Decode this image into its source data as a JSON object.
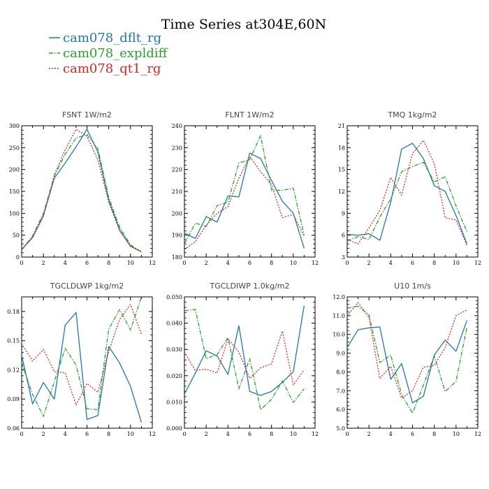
{
  "page": {
    "title": "Time Series at304E,60N"
  },
  "legend": [
    {
      "name": "cam078_dflt_rg",
      "color": "#1f77b4",
      "dash": "solid"
    },
    {
      "name": "cam078_expldiff",
      "color": "#2ca02c",
      "dash": "dashdot"
    },
    {
      "name": "cam078_qt1_rg",
      "color": "#d62728",
      "dash": "dot"
    }
  ],
  "chart_data": [
    {
      "type": "line",
      "title": "FSNT   1W/m2",
      "x": [
        0,
        1,
        2,
        3,
        4,
        5,
        6,
        7,
        8,
        9,
        10,
        11
      ],
      "xlim": [
        0,
        12
      ],
      "ylim": [
        0,
        300
      ],
      "xticks": [
        0,
        2,
        4,
        6,
        8,
        10,
        12
      ],
      "yticks": [
        "0",
        "50",
        "100",
        "150",
        "200",
        "250",
        "300"
      ],
      "ytick_values": [
        0,
        50,
        100,
        150,
        200,
        250,
        300
      ],
      "series": [
        {
          "name": "cam078_dflt_rg",
          "values": [
            17,
            45,
            95,
            180,
            215,
            252,
            292,
            240,
            130,
            62,
            25,
            12
          ]
        },
        {
          "name": "cam078_expldiff",
          "values": [
            17,
            48,
            100,
            185,
            235,
            272,
            280,
            248,
            136,
            68,
            28,
            12
          ]
        },
        {
          "name": "cam078_qt1_rg",
          "values": [
            17,
            44,
            93,
            188,
            245,
            292,
            276,
            222,
            125,
            60,
            24,
            12
          ]
        }
      ]
    },
    {
      "type": "line",
      "title": "FLNT   1W/m2",
      "x": [
        0,
        1,
        2,
        3,
        4,
        5,
        6,
        7,
        8,
        9,
        10,
        11
      ],
      "xlim": [
        0,
        12
      ],
      "ylim": [
        180,
        240
      ],
      "xticks": [
        0,
        2,
        4,
        6,
        8,
        10,
        12
      ],
      "yticks": [
        "180",
        "190",
        "200",
        "210",
        "220",
        "230",
        "240"
      ],
      "ytick_values": [
        180,
        190,
        200,
        210,
        220,
        230,
        240
      ],
      "series": [
        {
          "name": "cam078_dflt_rg",
          "values": [
            191,
            188.5,
            198.5,
            196,
            208,
            207.5,
            227.5,
            225,
            215,
            205.5,
            200,
            184
          ]
        },
        {
          "name": "cam078_expldiff",
          "values": [
            186,
            195.5,
            194,
            203.5,
            205,
            223,
            224.5,
            235.5,
            210.5,
            210.5,
            211.5,
            190
          ]
        },
        {
          "name": "cam078_qt1_rg",
          "values": [
            183.5,
            187,
            194.5,
            200,
            203,
            216,
            226,
            219,
            213,
            198,
            199.5,
            189.5
          ]
        }
      ]
    },
    {
      "type": "line",
      "title": "TMQ   1kg/m2",
      "x": [
        0,
        1,
        2,
        3,
        4,
        5,
        6,
        7,
        8,
        9,
        10,
        11
      ],
      "xlim": [
        0,
        12
      ],
      "ylim": [
        3,
        21
      ],
      "xticks": [
        0,
        2,
        4,
        6,
        8,
        10,
        12
      ],
      "yticks": [
        "3",
        "6",
        "9",
        "12",
        "15",
        "18",
        "21"
      ],
      "ytick_values": [
        3,
        6,
        9,
        12,
        15,
        18,
        21
      ],
      "series": [
        {
          "name": "cam078_dflt_rg",
          "values": [
            6.1,
            6,
            6.2,
            5.3,
            10.5,
            17.8,
            18.6,
            16.5,
            12.8,
            12,
            8.7,
            4.8
          ]
        },
        {
          "name": "cam078_expldiff",
          "values": [
            5.2,
            5.8,
            5.4,
            8.5,
            11,
            14.7,
            15.4,
            16,
            13.3,
            14,
            10,
            6.5
          ]
        },
        {
          "name": "cam078_qt1_rg",
          "values": [
            5.4,
            4.8,
            7,
            9.4,
            13.9,
            11.5,
            17.2,
            19,
            15.8,
            8.4,
            8.1,
            4.6
          ]
        }
      ]
    },
    {
      "type": "line",
      "title": "TGCLDLWP   1kg/m2",
      "x": [
        0,
        1,
        2,
        3,
        4,
        5,
        6,
        7,
        8,
        9,
        10,
        11
      ],
      "xlim": [
        0,
        12
      ],
      "ylim": [
        0.06,
        0.195
      ],
      "xticks": [
        0,
        2,
        4,
        6,
        8,
        10,
        12
      ],
      "yticks": [
        "0.06",
        "0.09",
        "0.12",
        "0.15",
        "0.18"
      ],
      "ytick_values": [
        0.06,
        0.09,
        0.12,
        0.15,
        0.18
      ],
      "series": [
        {
          "name": "cam078_dflt_rg",
          "values": [
            0.135,
            0.085,
            0.107,
            0.09,
            0.166,
            0.179,
            0.069,
            0.073,
            0.144,
            0.127,
            0.103,
            0.066
          ]
        },
        {
          "name": "cam078_expldiff",
          "values": [
            0.127,
            0.095,
            0.072,
            0.108,
            0.142,
            0.125,
            0.08,
            0.079,
            0.162,
            0.182,
            0.161,
            0.195
          ]
        },
        {
          "name": "cam078_qt1_rg",
          "values": [
            0.147,
            0.129,
            0.141,
            0.118,
            0.117,
            0.084,
            0.106,
            0.097,
            0.139,
            0.172,
            0.187,
            0.157
          ]
        }
      ]
    },
    {
      "type": "line",
      "title": "TGCLDIWP   1.0kg/m2",
      "x": [
        0,
        1,
        2,
        3,
        4,
        5,
        6,
        7,
        8,
        9,
        10,
        11
      ],
      "xlim": [
        0,
        12
      ],
      "ylim": [
        0,
        0.05
      ],
      "xticks": [
        0,
        2,
        4,
        6,
        8,
        10,
        12
      ],
      "yticks": [
        "0.000",
        "0.010",
        "0.020",
        "0.030",
        "0.040",
        "0.050"
      ],
      "ytick_values": [
        0,
        0.01,
        0.02,
        0.03,
        0.04,
        0.05
      ],
      "series": [
        {
          "name": "cam078_dflt_rg",
          "values": [
            0.013,
            0.021,
            0.0295,
            0.0275,
            0.0205,
            0.039,
            0.014,
            0.0125,
            0.014,
            0.0175,
            0.0215,
            0.0467
          ]
        },
        {
          "name": "cam078_expldiff",
          "values": [
            0.0447,
            0.0452,
            0.0265,
            0.028,
            0.0345,
            0.015,
            0.0265,
            0.007,
            0.011,
            0.018,
            0.0098,
            0.015
          ]
        },
        {
          "name": "cam078_qt1_rg",
          "values": [
            0.029,
            0.022,
            0.0225,
            0.021,
            0.034,
            0.029,
            0.019,
            0.023,
            0.0245,
            0.037,
            0.0165,
            0.0222
          ]
        }
      ]
    },
    {
      "type": "line",
      "title": "U10   1m/s",
      "x": [
        0,
        1,
        2,
        3,
        4,
        5,
        6,
        7,
        8,
        9,
        10,
        11
      ],
      "xlim": [
        0,
        12
      ],
      "ylim": [
        5,
        12
      ],
      "xticks": [
        0,
        2,
        4,
        6,
        8,
        10,
        12
      ],
      "yticks": [
        "5.0",
        "6.0",
        "7.0",
        "8.0",
        "9.0",
        "10.0",
        "11.0",
        "12.0"
      ],
      "ytick_values": [
        5,
        6,
        7,
        8,
        9,
        10,
        11,
        12
      ],
      "series": [
        {
          "name": "cam078_dflt_rg",
          "values": [
            9.3,
            10.25,
            10.35,
            10.4,
            7.6,
            8.45,
            6.35,
            6.7,
            8.9,
            9.7,
            9.1,
            10.75
          ]
        },
        {
          "name": "cam078_expldiff",
          "values": [
            11.4,
            11.5,
            11.05,
            8.5,
            8.9,
            6.8,
            5.8,
            7.3,
            8.85,
            6.95,
            7.5,
            10.4
          ]
        },
        {
          "name": "cam078_qt1_rg",
          "values": [
            11,
            11.7,
            10.9,
            7.65,
            8.3,
            6.6,
            7,
            8.25,
            8.35,
            9.3,
            11,
            11.3
          ]
        }
      ]
    }
  ]
}
